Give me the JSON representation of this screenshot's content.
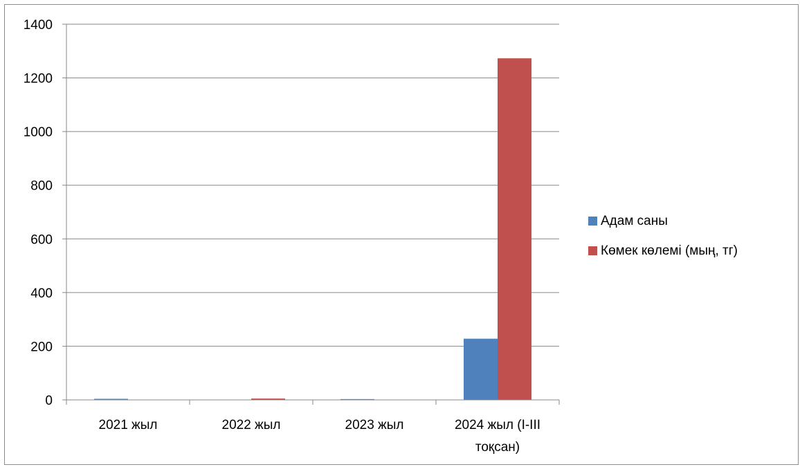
{
  "chart_data": {
    "type": "bar",
    "categories": [
      [
        "2021 жыл"
      ],
      [
        "2022 жыл"
      ],
      [
        "2023 жыл"
      ],
      [
        "2024 жыл (I-III",
        "тоқсан)"
      ]
    ],
    "series": [
      {
        "name": "Адам саны",
        "color": "#4f81bd",
        "values": [
          4,
          1,
          3,
          228
        ]
      },
      {
        "name": "Көмек көлемі (мың, тг)",
        "color": "#c0504d",
        "values": [
          1,
          5,
          1,
          1273
        ]
      }
    ],
    "ylim": [
      0,
      1400
    ],
    "yticks": [
      0,
      200,
      400,
      600,
      800,
      1000,
      1200,
      1400
    ],
    "grid": true,
    "legend": "right"
  }
}
